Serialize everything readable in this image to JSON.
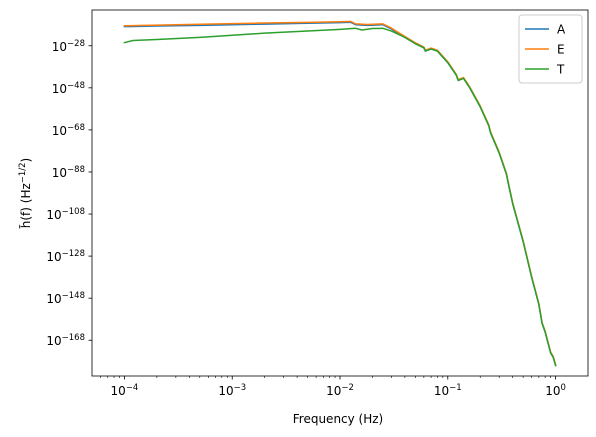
{
  "chart_data": {
    "type": "line",
    "xlabel": "Frequency (Hz)",
    "ylabel": "h̃(f) (Hz^-1/2)",
    "ylabel_parts": {
      "main": "h̃(f) (Hz",
      "sup": "−1/2",
      "close": ")"
    },
    "xscale": "log",
    "yscale": "log",
    "xlim": [
      5e-05,
      2
    ],
    "ylim_exp": [
      -185,
      -11
    ],
    "x_ticks": [
      {
        "base": "10",
        "exp": "−4",
        "value": 0.0001
      },
      {
        "base": "10",
        "exp": "−3",
        "value": 0.001
      },
      {
        "base": "10",
        "exp": "−2",
        "value": 0.01
      },
      {
        "base": "10",
        "exp": "−1",
        "value": 0.1
      },
      {
        "base": "10",
        "exp": "0",
        "value": 1
      }
    ],
    "y_ticks": [
      {
        "base": "10",
        "exp": "−28",
        "value_exp": -28
      },
      {
        "base": "10",
        "exp": "−48",
        "value_exp": -48
      },
      {
        "base": "10",
        "exp": "−68",
        "value_exp": -68
      },
      {
        "base": "10",
        "exp": "−88",
        "value_exp": -88
      },
      {
        "base": "10",
        "exp": "−108",
        "value_exp": -108
      },
      {
        "base": "10",
        "exp": "−128",
        "value_exp": -128
      },
      {
        "base": "10",
        "exp": "−148",
        "value_exp": -148
      },
      {
        "base": "10",
        "exp": "−168",
        "value_exp": -168
      }
    ],
    "legend_position": "top-right",
    "grid": false,
    "series": [
      {
        "name": "A",
        "color": "#1f77b4",
        "points": [
          [
            0.0001,
            -18.9
          ],
          [
            0.0002,
            -18.6
          ],
          [
            0.0005,
            -18.3
          ],
          [
            0.001,
            -18.0
          ],
          [
            0.002,
            -17.7
          ],
          [
            0.005,
            -17.3
          ],
          [
            0.01,
            -17.0
          ],
          [
            0.0125,
            -16.8
          ],
          [
            0.014,
            -18.0
          ],
          [
            0.018,
            -18.3
          ],
          [
            0.025,
            -18.0
          ],
          [
            0.03,
            -20.0
          ],
          [
            0.04,
            -24.0
          ],
          [
            0.05,
            -27.0
          ],
          [
            0.06,
            -29.0
          ],
          [
            0.062,
            -30.5
          ],
          [
            0.07,
            -29.5
          ],
          [
            0.08,
            -30.5
          ],
          [
            0.1,
            -36.0
          ],
          [
            0.12,
            -42.0
          ],
          [
            0.125,
            -44.5
          ],
          [
            0.14,
            -43.5
          ],
          [
            0.16,
            -48.0
          ],
          [
            0.2,
            -57.0
          ],
          [
            0.24,
            -66.0
          ],
          [
            0.25,
            -69.5
          ],
          [
            0.3,
            -79.0
          ],
          [
            0.35,
            -89.0
          ],
          [
            0.37,
            -95.0
          ],
          [
            0.4,
            -103.0
          ],
          [
            0.5,
            -121.0
          ],
          [
            0.6,
            -138.0
          ],
          [
            0.7,
            -151.0
          ],
          [
            0.75,
            -160.0
          ],
          [
            0.8,
            -164.0
          ],
          [
            0.9,
            -174.0
          ],
          [
            0.95,
            -176.0
          ],
          [
            1.0,
            -180.0
          ]
        ]
      },
      {
        "name": "E",
        "color": "#ff7f0e",
        "points": [
          [
            0.0001,
            -18.5
          ],
          [
            0.0002,
            -18.2
          ],
          [
            0.0005,
            -17.8
          ],
          [
            0.001,
            -17.5
          ],
          [
            0.002,
            -17.2
          ],
          [
            0.005,
            -16.9
          ],
          [
            0.01,
            -16.6
          ],
          [
            0.0125,
            -16.4
          ],
          [
            0.014,
            -17.6
          ],
          [
            0.018,
            -17.9
          ],
          [
            0.025,
            -17.6
          ],
          [
            0.03,
            -19.6
          ],
          [
            0.04,
            -23.6
          ],
          [
            0.05,
            -26.6
          ],
          [
            0.06,
            -28.6
          ],
          [
            0.062,
            -30.1
          ],
          [
            0.07,
            -29.1
          ],
          [
            0.08,
            -30.1
          ],
          [
            0.1,
            -35.6
          ],
          [
            0.12,
            -41.6
          ],
          [
            0.125,
            -44.1
          ],
          [
            0.14,
            -43.1
          ],
          [
            0.16,
            -47.6
          ],
          [
            0.2,
            -56.6
          ],
          [
            0.24,
            -65.6
          ],
          [
            0.25,
            -69.1
          ],
          [
            0.3,
            -78.6
          ],
          [
            0.35,
            -88.6
          ],
          [
            0.37,
            -94.6
          ],
          [
            0.4,
            -102.6
          ],
          [
            0.5,
            -120.6
          ],
          [
            0.6,
            -137.6
          ],
          [
            0.7,
            -150.6
          ],
          [
            0.75,
            -159.6
          ],
          [
            0.8,
            -163.6
          ],
          [
            0.9,
            -173.6
          ],
          [
            0.95,
            -175.6
          ],
          [
            1.0,
            -179.6
          ]
        ]
      },
      {
        "name": "T",
        "color": "#2ca02c",
        "points": [
          [
            0.0001,
            -26.5
          ],
          [
            0.00012,
            -25.5
          ],
          [
            0.0002,
            -25.0
          ],
          [
            0.0005,
            -24.0
          ],
          [
            0.001,
            -23.0
          ],
          [
            0.002,
            -22.0
          ],
          [
            0.005,
            -21.0
          ],
          [
            0.01,
            -20.2
          ],
          [
            0.014,
            -19.7
          ],
          [
            0.016,
            -20.5
          ],
          [
            0.02,
            -19.8
          ],
          [
            0.025,
            -19.7
          ],
          [
            0.03,
            -21.0
          ],
          [
            0.04,
            -24.0
          ],
          [
            0.05,
            -27.0
          ],
          [
            0.06,
            -29.0
          ],
          [
            0.062,
            -30.5
          ],
          [
            0.07,
            -29.5
          ],
          [
            0.08,
            -30.5
          ],
          [
            0.1,
            -36.0
          ],
          [
            0.12,
            -42.0
          ],
          [
            0.125,
            -44.5
          ],
          [
            0.14,
            -43.5
          ],
          [
            0.16,
            -48.0
          ],
          [
            0.2,
            -57.0
          ],
          [
            0.24,
            -66.0
          ],
          [
            0.25,
            -69.5
          ],
          [
            0.3,
            -79.0
          ],
          [
            0.35,
            -89.0
          ],
          [
            0.37,
            -95.0
          ],
          [
            0.4,
            -103.0
          ],
          [
            0.5,
            -121.0
          ],
          [
            0.6,
            -138.0
          ],
          [
            0.7,
            -151.0
          ],
          [
            0.75,
            -160.0
          ],
          [
            0.8,
            -164.0
          ],
          [
            0.9,
            -174.0
          ],
          [
            0.95,
            -176.0
          ],
          [
            1.0,
            -180.0
          ]
        ]
      }
    ]
  }
}
